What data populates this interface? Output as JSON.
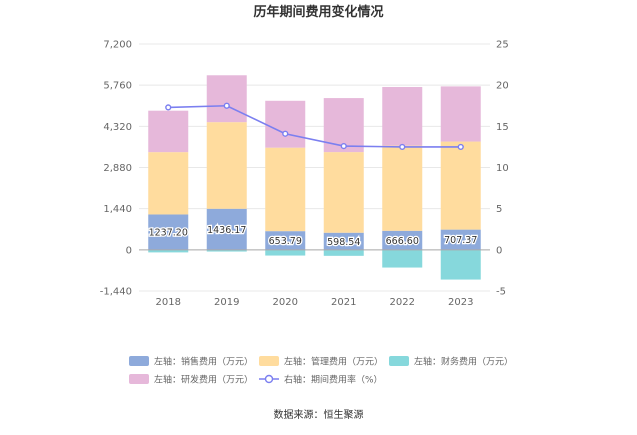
{
  "chart_data": {
    "type": "bar",
    "title": "历年期间费用变化情况",
    "categories": [
      "2018",
      "2019",
      "2020",
      "2021",
      "2022",
      "2023"
    ],
    "left_axis": {
      "ticks": [
        "7,200",
        "5,760",
        "4,320",
        "2,880",
        "1,440",
        "0",
        "-1,440"
      ],
      "ylim": [
        -1440,
        7200
      ]
    },
    "right_axis": {
      "ticks": [
        "25",
        "20",
        "15",
        "10",
        "5",
        "0",
        "-5"
      ],
      "ylim": [
        -5,
        25
      ]
    },
    "series": [
      {
        "name": "左轴：销售费用（万元）",
        "kind": "bar",
        "axis": "left",
        "color": "#8eaadb",
        "values": [
          1237.2,
          1436.17,
          653.79,
          598.54,
          666.6,
          707.37
        ]
      },
      {
        "name": "左轴：管理费用（万元）",
        "kind": "bar",
        "axis": "left",
        "color": "#ffdc9e",
        "values": [
          2180,
          3030,
          2920,
          2820,
          2980,
          3080
        ]
      },
      {
        "name": "左轴：财务费用（万元）",
        "kind": "bar",
        "axis": "left",
        "color": "#86d8dc",
        "values": [
          -90,
          -60,
          -200,
          -210,
          -620,
          -1040
        ]
      },
      {
        "name": "左轴：研发费用（万元）",
        "kind": "bar",
        "axis": "left",
        "color": "#e6b8da",
        "values": [
          1450,
          1640,
          1640,
          1890,
          2050,
          1930
        ]
      },
      {
        "name": "右轴：期间费用率（%）",
        "kind": "line",
        "axis": "right",
        "color": "#7b7ff0",
        "values": [
          17.3,
          17.5,
          14.1,
          12.6,
          12.5,
          12.5
        ]
      }
    ],
    "data_labels": [
      "1237.20",
      "1436.17",
      "653.79",
      "598.54",
      "666.60",
      "707.37"
    ],
    "legend_position": "bottom",
    "grid": true
  },
  "source": "数据来源：恒生聚源"
}
